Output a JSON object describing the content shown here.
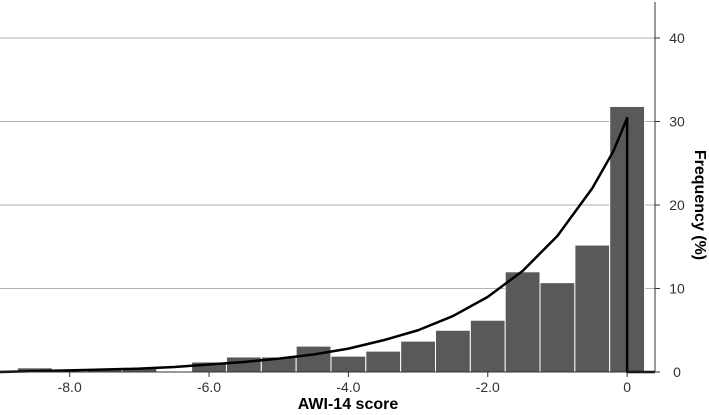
{
  "chart_data": {
    "type": "bar",
    "title": "",
    "xlabel": "AWI-14 score",
    "ylabel": "Frequency (%)",
    "xlim": [
      -9.0,
      0.4
    ],
    "ylim": [
      0,
      45
    ],
    "grid": true,
    "legend": "none",
    "x_ticks": [
      -8.0,
      -6.0,
      -4.0,
      -2.0,
      0
    ],
    "x_tick_labels": [
      "-8.0",
      "-6.0",
      "-4.0",
      "-2.0",
      "0"
    ],
    "y_ticks": [
      0,
      10,
      20,
      30,
      40
    ],
    "y_tick_labels": [
      "0",
      "10",
      "20",
      "30",
      "40"
    ],
    "bar_width": 0.5,
    "x": [
      -8.5,
      -7.5,
      -7.0,
      -6.0,
      -5.5,
      -5.0,
      -4.5,
      -4.0,
      -3.5,
      -3.0,
      -2.5,
      -2.0,
      -1.5,
      -1.0,
      -0.5,
      0.0
    ],
    "values": [
      0.5,
      0.4,
      0.5,
      1.2,
      1.8,
      1.8,
      3.1,
      1.9,
      2.5,
      3.7,
      5.0,
      6.2,
      12.0,
      10.7,
      15.2,
      31.8
    ],
    "bar_color": "#595959",
    "fitted_curve": {
      "type": "exponential",
      "x": [
        -9.0,
        -8.5,
        -8.0,
        -7.5,
        -7.0,
        -6.5,
        -6.0,
        -5.5,
        -5.0,
        -4.5,
        -4.0,
        -3.5,
        -3.0,
        -2.5,
        -2.0,
        -1.5,
        -1.0,
        -0.5,
        -0.2,
        0.0
      ],
      "y": [
        0.0,
        0.1,
        0.2,
        0.3,
        0.4,
        0.6,
        0.9,
        1.2,
        1.6,
        2.1,
        2.8,
        3.8,
        5.0,
        6.7,
        9.0,
        12.1,
        16.3,
        22.0,
        26.4,
        30.4
      ],
      "drop_to_zero_at": 0.0,
      "color": "#000000"
    },
    "grid_color": "#b3b3b3"
  }
}
